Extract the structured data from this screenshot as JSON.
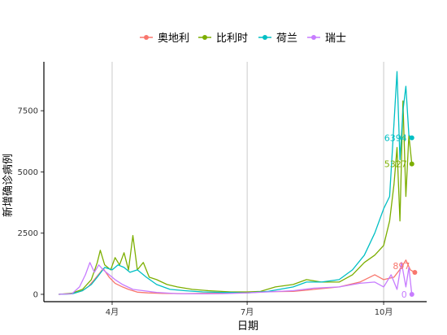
{
  "chart_data": {
    "type": "line",
    "xlabel": "日期",
    "ylabel": "新增确诊病例",
    "x_range": [
      "2020-02-15",
      "2020-10-30"
    ],
    "ylim": [
      -300,
      9500
    ],
    "x_ticks": [
      {
        "date": "2020-04-01",
        "label": "4月"
      },
      {
        "date": "2020-07-01",
        "label": "7月"
      },
      {
        "date": "2020-10-01",
        "label": "10月"
      }
    ],
    "y_ticks": [
      0,
      2500,
      5000,
      7500
    ],
    "grid": "vertical major gridlines at x ticks",
    "legend": {
      "position": "top"
    },
    "series": [
      {
        "name": "奥地利",
        "color": "#F8766D",
        "end_label": "897",
        "end_value": 897,
        "points": [
          [
            "2020-02-25",
            0
          ],
          [
            "2020-03-05",
            20
          ],
          [
            "2020-03-12",
            150
          ],
          [
            "2020-03-16",
            320
          ],
          [
            "2020-03-20",
            600
          ],
          [
            "2020-03-24",
            900
          ],
          [
            "2020-03-26",
            1050
          ],
          [
            "2020-03-30",
            700
          ],
          [
            "2020-04-03",
            450
          ],
          [
            "2020-04-08",
            300
          ],
          [
            "2020-04-12",
            200
          ],
          [
            "2020-04-18",
            90
          ],
          [
            "2020-04-25",
            60
          ],
          [
            "2020-05-05",
            40
          ],
          [
            "2020-05-20",
            30
          ],
          [
            "2020-06-05",
            40
          ],
          [
            "2020-06-20",
            50
          ],
          [
            "2020-07-01",
            80
          ],
          [
            "2020-07-15",
            110
          ],
          [
            "2020-08-01",
            120
          ],
          [
            "2020-08-15",
            200
          ],
          [
            "2020-09-01",
            300
          ],
          [
            "2020-09-15",
            500
          ],
          [
            "2020-09-25",
            800
          ],
          [
            "2020-10-01",
            600
          ],
          [
            "2020-10-08",
            700
          ],
          [
            "2020-10-13",
            1100
          ],
          [
            "2020-10-16",
            1400
          ],
          [
            "2020-10-19",
            1000
          ],
          [
            "2020-10-22",
            897
          ]
        ]
      },
      {
        "name": "比利时",
        "color": "#7CAE00",
        "end_label": "5327",
        "end_value": 5327,
        "points": [
          [
            "2020-02-25",
            0
          ],
          [
            "2020-03-05",
            50
          ],
          [
            "2020-03-12",
            200
          ],
          [
            "2020-03-18",
            600
          ],
          [
            "2020-03-22",
            1300
          ],
          [
            "2020-03-24",
            1800
          ],
          [
            "2020-03-27",
            1200
          ],
          [
            "2020-03-31",
            1000
          ],
          [
            "2020-04-03",
            1500
          ],
          [
            "2020-04-06",
            1200
          ],
          [
            "2020-04-09",
            1700
          ],
          [
            "2020-04-12",
            1000
          ],
          [
            "2020-04-15",
            2400
          ],
          [
            "2020-04-18",
            1000
          ],
          [
            "2020-04-22",
            1300
          ],
          [
            "2020-04-26",
            700
          ],
          [
            "2020-05-01",
            600
          ],
          [
            "2020-05-08",
            400
          ],
          [
            "2020-05-15",
            300
          ],
          [
            "2020-05-25",
            200
          ],
          [
            "2020-06-05",
            150
          ],
          [
            "2020-06-20",
            100
          ],
          [
            "2020-07-01",
            100
          ],
          [
            "2020-07-10",
            120
          ],
          [
            "2020-07-20",
            300
          ],
          [
            "2020-08-01",
            400
          ],
          [
            "2020-08-10",
            600
          ],
          [
            "2020-08-20",
            500
          ],
          [
            "2020-09-01",
            500
          ],
          [
            "2020-09-10",
            800
          ],
          [
            "2020-09-18",
            1300
          ],
          [
            "2020-09-25",
            1600
          ],
          [
            "2020-10-01",
            2000
          ],
          [
            "2020-10-05",
            3000
          ],
          [
            "2020-10-08",
            4500
          ],
          [
            "2020-10-10",
            6000
          ],
          [
            "2020-10-12",
            3000
          ],
          [
            "2020-10-14",
            7900
          ],
          [
            "2020-10-16",
            4000
          ],
          [
            "2020-10-18",
            6500
          ],
          [
            "2020-10-20",
            5327
          ]
        ]
      },
      {
        "name": "荷兰",
        "color": "#00BFC4",
        "end_label": "6394",
        "end_value": 6394,
        "points": [
          [
            "2020-02-25",
            0
          ],
          [
            "2020-03-05",
            20
          ],
          [
            "2020-03-12",
            150
          ],
          [
            "2020-03-18",
            400
          ],
          [
            "2020-03-22",
            700
          ],
          [
            "2020-03-27",
            1100
          ],
          [
            "2020-04-01",
            1000
          ],
          [
            "2020-04-05",
            1200
          ],
          [
            "2020-04-09",
            1100
          ],
          [
            "2020-04-13",
            900
          ],
          [
            "2020-04-18",
            1000
          ],
          [
            "2020-04-24",
            700
          ],
          [
            "2020-05-01",
            400
          ],
          [
            "2020-05-10",
            200
          ],
          [
            "2020-05-20",
            150
          ],
          [
            "2020-06-01",
            100
          ],
          [
            "2020-06-15",
            80
          ],
          [
            "2020-07-01",
            60
          ],
          [
            "2020-07-15",
            120
          ],
          [
            "2020-08-01",
            300
          ],
          [
            "2020-08-10",
            500
          ],
          [
            "2020-08-20",
            500
          ],
          [
            "2020-09-01",
            600
          ],
          [
            "2020-09-10",
            1000
          ],
          [
            "2020-09-18",
            1600
          ],
          [
            "2020-09-25",
            2500
          ],
          [
            "2020-10-01",
            3500
          ],
          [
            "2020-10-05",
            4000
          ],
          [
            "2020-10-08",
            7000
          ],
          [
            "2020-10-10",
            9100
          ],
          [
            "2020-10-12",
            5500
          ],
          [
            "2020-10-14",
            7500
          ],
          [
            "2020-10-16",
            8500
          ],
          [
            "2020-10-18",
            6500
          ],
          [
            "2020-10-20",
            6394
          ]
        ]
      },
      {
        "name": "瑞士",
        "color": "#C77CFF",
        "end_label": "0",
        "end_value": 0,
        "points": [
          [
            "2020-02-25",
            0
          ],
          [
            "2020-03-05",
            30
          ],
          [
            "2020-03-10",
            300
          ],
          [
            "2020-03-14",
            800
          ],
          [
            "2020-03-17",
            1300
          ],
          [
            "2020-03-20",
            900
          ],
          [
            "2020-03-23",
            1200
          ],
          [
            "2020-03-26",
            1000
          ],
          [
            "2020-03-30",
            800
          ],
          [
            "2020-04-03",
            600
          ],
          [
            "2020-04-08",
            400
          ],
          [
            "2020-04-15",
            200
          ],
          [
            "2020-04-22",
            150
          ],
          [
            "2020-05-01",
            80
          ],
          [
            "2020-05-15",
            30
          ],
          [
            "2020-06-01",
            20
          ],
          [
            "2020-06-15",
            30
          ],
          [
            "2020-07-01",
            60
          ],
          [
            "2020-07-15",
            100
          ],
          [
            "2020-08-01",
            150
          ],
          [
            "2020-08-15",
            250
          ],
          [
            "2020-09-01",
            300
          ],
          [
            "2020-09-15",
            450
          ],
          [
            "2020-09-25",
            500
          ],
          [
            "2020-10-01",
            300
          ],
          [
            "2020-10-06",
            800
          ],
          [
            "2020-10-10",
            200
          ],
          [
            "2020-10-13",
            1300
          ],
          [
            "2020-10-16",
            300
          ],
          [
            "2020-10-18",
            1100
          ],
          [
            "2020-10-20",
            0
          ]
        ]
      }
    ]
  }
}
